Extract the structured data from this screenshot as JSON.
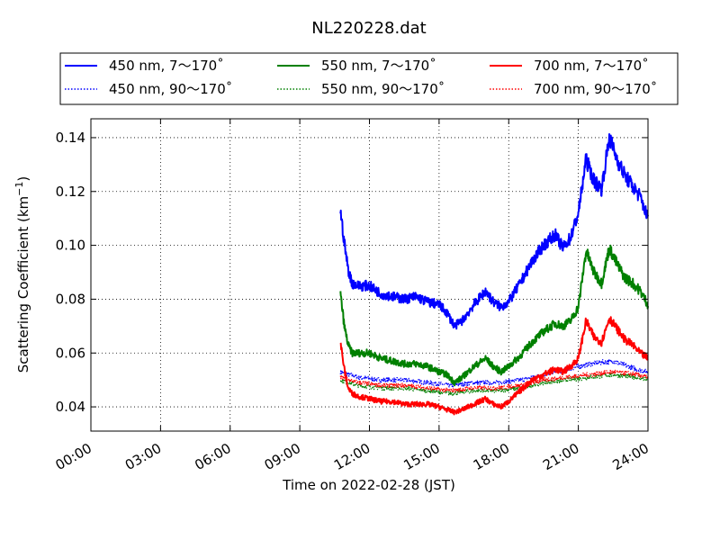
{
  "chart_data": {
    "type": "line",
    "title": "NL220228.dat",
    "xlabel": "Time on 2022-02-28 (JST)",
    "ylabel": "Scattering Coefficient (km",
    "ylabel_sup": "−1",
    "ylabel_end": ")",
    "xlim": [
      "00:00",
      "24:00"
    ],
    "ylim": [
      0.031,
      0.147
    ],
    "grid": true,
    "legend_position": "top (above plot, 3 columns)",
    "x_ticks": [
      "00:00",
      "03:00",
      "06:00",
      "09:00",
      "12:00",
      "15:00",
      "18:00",
      "21:00",
      "24:00"
    ],
    "y_ticks": [
      "0.04",
      "0.06",
      "0.08",
      "0.10",
      "0.12",
      "0.14"
    ],
    "series": [
      {
        "name": "450 nm, 7～170˚",
        "color": "#0000ff",
        "style": "solid",
        "x": [
          "10:45",
          "10:55",
          "11:05",
          "11:15",
          "11:30",
          "12:00",
          "12:30",
          "13:00",
          "13:30",
          "14:00",
          "14:30",
          "15:00",
          "15:20",
          "15:40",
          "16:00",
          "16:30",
          "17:00",
          "17:20",
          "17:40",
          "18:00",
          "18:30",
          "19:00",
          "19:30",
          "20:00",
          "20:20",
          "20:40",
          "21:00",
          "21:20",
          "21:40",
          "22:00",
          "22:20",
          "22:40",
          "23:00",
          "23:20",
          "23:40",
          "24:00"
        ],
        "y": [
          0.113,
          0.101,
          0.091,
          0.086,
          0.085,
          0.085,
          0.082,
          0.081,
          0.08,
          0.081,
          0.079,
          0.078,
          0.075,
          0.07,
          0.072,
          0.078,
          0.083,
          0.079,
          0.077,
          0.079,
          0.086,
          0.094,
          0.1,
          0.104,
          0.099,
          0.103,
          0.112,
          0.132,
          0.124,
          0.121,
          0.14,
          0.132,
          0.126,
          0.122,
          0.118,
          0.11
        ]
      },
      {
        "name": "450 nm, 90～170˚",
        "color": "#0000ff",
        "style": "dotted",
        "x": [
          "10:45",
          "11:30",
          "12:30",
          "13:30",
          "14:30",
          "15:30",
          "16:30",
          "17:30",
          "18:30",
          "19:30",
          "20:30",
          "21:30",
          "22:30",
          "23:30",
          "24:00"
        ],
        "y": [
          0.053,
          0.051,
          0.05,
          0.05,
          0.049,
          0.048,
          0.049,
          0.049,
          0.05,
          0.052,
          0.054,
          0.056,
          0.057,
          0.054,
          0.053
        ]
      },
      {
        "name": "550 nm, 7～170˚",
        "color": "#008000",
        "style": "solid",
        "x": [
          "10:45",
          "10:55",
          "11:05",
          "11:15",
          "11:30",
          "12:00",
          "12:30",
          "13:00",
          "13:30",
          "14:00",
          "14:30",
          "15:00",
          "15:20",
          "15:40",
          "16:00",
          "16:30",
          "17:00",
          "17:20",
          "17:40",
          "18:00",
          "18:30",
          "19:00",
          "19:30",
          "20:00",
          "20:20",
          "20:40",
          "21:00",
          "21:20",
          "21:40",
          "22:00",
          "22:20",
          "22:40",
          "23:00",
          "23:20",
          "23:40",
          "24:00"
        ],
        "y": [
          0.082,
          0.07,
          0.063,
          0.06,
          0.06,
          0.06,
          0.058,
          0.057,
          0.056,
          0.056,
          0.055,
          0.053,
          0.052,
          0.049,
          0.051,
          0.055,
          0.058,
          0.055,
          0.053,
          0.055,
          0.059,
          0.064,
          0.068,
          0.071,
          0.07,
          0.072,
          0.077,
          0.098,
          0.09,
          0.086,
          0.099,
          0.093,
          0.088,
          0.086,
          0.083,
          0.078
        ]
      },
      {
        "name": "550 nm, 90～170˚",
        "color": "#008000",
        "style": "dotted",
        "x": [
          "10:45",
          "11:30",
          "12:30",
          "13:30",
          "14:30",
          "15:30",
          "16:30",
          "17:30",
          "18:30",
          "19:30",
          "20:30",
          "21:30",
          "22:30",
          "23:30",
          "24:00"
        ],
        "y": [
          0.05,
          0.048,
          0.047,
          0.047,
          0.046,
          0.045,
          0.046,
          0.046,
          0.047,
          0.049,
          0.05,
          0.051,
          0.052,
          0.051,
          0.05
        ]
      },
      {
        "name": "700 nm, 7～170˚",
        "color": "#ff0000",
        "style": "solid",
        "x": [
          "10:45",
          "10:55",
          "11:05",
          "11:15",
          "11:30",
          "12:00",
          "12:30",
          "13:00",
          "13:30",
          "14:00",
          "14:30",
          "15:00",
          "15:20",
          "15:40",
          "16:00",
          "16:30",
          "17:00",
          "17:20",
          "17:40",
          "18:00",
          "18:30",
          "19:00",
          "19:30",
          "20:00",
          "20:20",
          "20:40",
          "21:00",
          "21:20",
          "21:40",
          "22:00",
          "22:20",
          "22:40",
          "23:00",
          "23:20",
          "23:40",
          "24:00"
        ],
        "y": [
          0.064,
          0.054,
          0.047,
          0.045,
          0.044,
          0.043,
          0.042,
          0.042,
          0.041,
          0.041,
          0.041,
          0.04,
          0.039,
          0.038,
          0.039,
          0.041,
          0.043,
          0.041,
          0.04,
          0.042,
          0.046,
          0.05,
          0.052,
          0.054,
          0.053,
          0.055,
          0.058,
          0.072,
          0.066,
          0.064,
          0.073,
          0.069,
          0.065,
          0.063,
          0.06,
          0.058
        ]
      },
      {
        "name": "700 nm, 90～170˚",
        "color": "#ff0000",
        "style": "dotted",
        "x": [
          "10:45",
          "11:30",
          "12:30",
          "13:30",
          "14:30",
          "15:30",
          "16:30",
          "17:30",
          "18:30",
          "19:30",
          "20:30",
          "21:30",
          "22:30",
          "23:30",
          "24:00"
        ],
        "y": [
          0.051,
          0.049,
          0.048,
          0.048,
          0.047,
          0.046,
          0.047,
          0.047,
          0.048,
          0.05,
          0.051,
          0.052,
          0.053,
          0.052,
          0.051
        ]
      }
    ]
  }
}
